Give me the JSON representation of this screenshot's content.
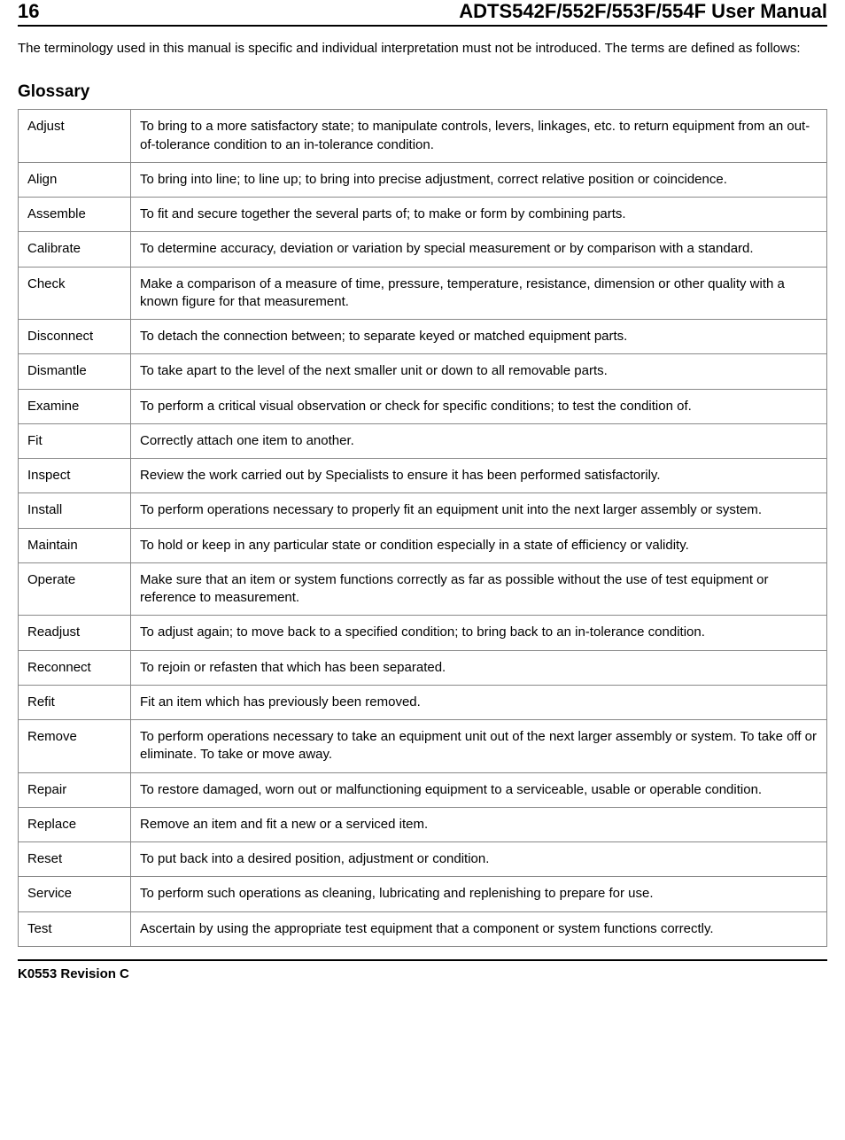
{
  "header": {
    "page_number": "16",
    "title": "ADTS542F/552F/553F/554F User Manual"
  },
  "intro": "The terminology used in this manual is specific and individual interpretation must not be introduced. The terms are defined as follows:",
  "glossary_title": "Glossary",
  "glossary": [
    {
      "term": "Adjust",
      "def": "To bring to a more satisfactory state; to manipulate controls, levers, linkages, etc. to return equipment from an out-of-tolerance condition to an in-tolerance condition."
    },
    {
      "term": "Align",
      "def": "To bring into line; to line up; to bring into precise adjustment, correct relative position or coincidence."
    },
    {
      "term": "Assemble",
      "def": "To fit and secure together the several parts of; to make or form by combining parts."
    },
    {
      "term": "Calibrate",
      "def": "To determine accuracy, deviation or variation by special measurement or by comparison with a standard."
    },
    {
      "term": "Check",
      "def": "Make a comparison of a measure of time, pressure, temperature, resistance, dimension or other quality with a known figure for that measurement."
    },
    {
      "term": "Disconnect",
      "def": "To detach the connection between; to separate keyed or matched equipment parts."
    },
    {
      "term": "Dismantle",
      "def": "To take apart to the level of the next smaller unit or down to all removable parts."
    },
    {
      "term": "Examine",
      "def": "To perform a critical visual observation or check for specific conditions; to test the condition of."
    },
    {
      "term": "Fit",
      "def": "Correctly attach one item to another."
    },
    {
      "term": "Inspect",
      "def": "Review the work carried out by Specialists to ensure it has been performed satisfactorily."
    },
    {
      "term": "Install",
      "def": "To perform operations necessary to properly fit an equipment unit into the next larger assembly or system."
    },
    {
      "term": "Maintain",
      "def": "To hold or keep in any particular state or condition especially in a state of efficiency or validity."
    },
    {
      "term": "Operate",
      "def": "Make sure that an item or system functions correctly as far as possible without the use of test equipment or reference to measurement."
    },
    {
      "term": "Readjust",
      "def": "To adjust again; to move back to a specified condition; to bring back to an in-tolerance condition."
    },
    {
      "term": "Reconnect",
      "def": "To rejoin or refasten that which has been separated."
    },
    {
      "term": "Refit",
      "def": "Fit an item which has previously been removed."
    },
    {
      "term": "Remove",
      "def": "To perform operations necessary to take an equipment unit out of the next larger assembly or system. To take off or eliminate. To take or move away."
    },
    {
      "term": "Repair",
      "def": "To restore damaged, worn out or malfunctioning equipment to a serviceable, usable or operable condition."
    },
    {
      "term": "Replace",
      "def": "Remove an item and fit a new or a serviced item."
    },
    {
      "term": "Reset",
      "def": "To put back into a desired position, adjustment or condition."
    },
    {
      "term": "Service",
      "def": "To perform such operations as cleaning, lubricating and replenishing to prepare for use."
    },
    {
      "term": "Test",
      "def": "Ascertain by using the appropriate test equipment that a component or system functions correctly."
    }
  ],
  "footer": "K0553 Revision C"
}
